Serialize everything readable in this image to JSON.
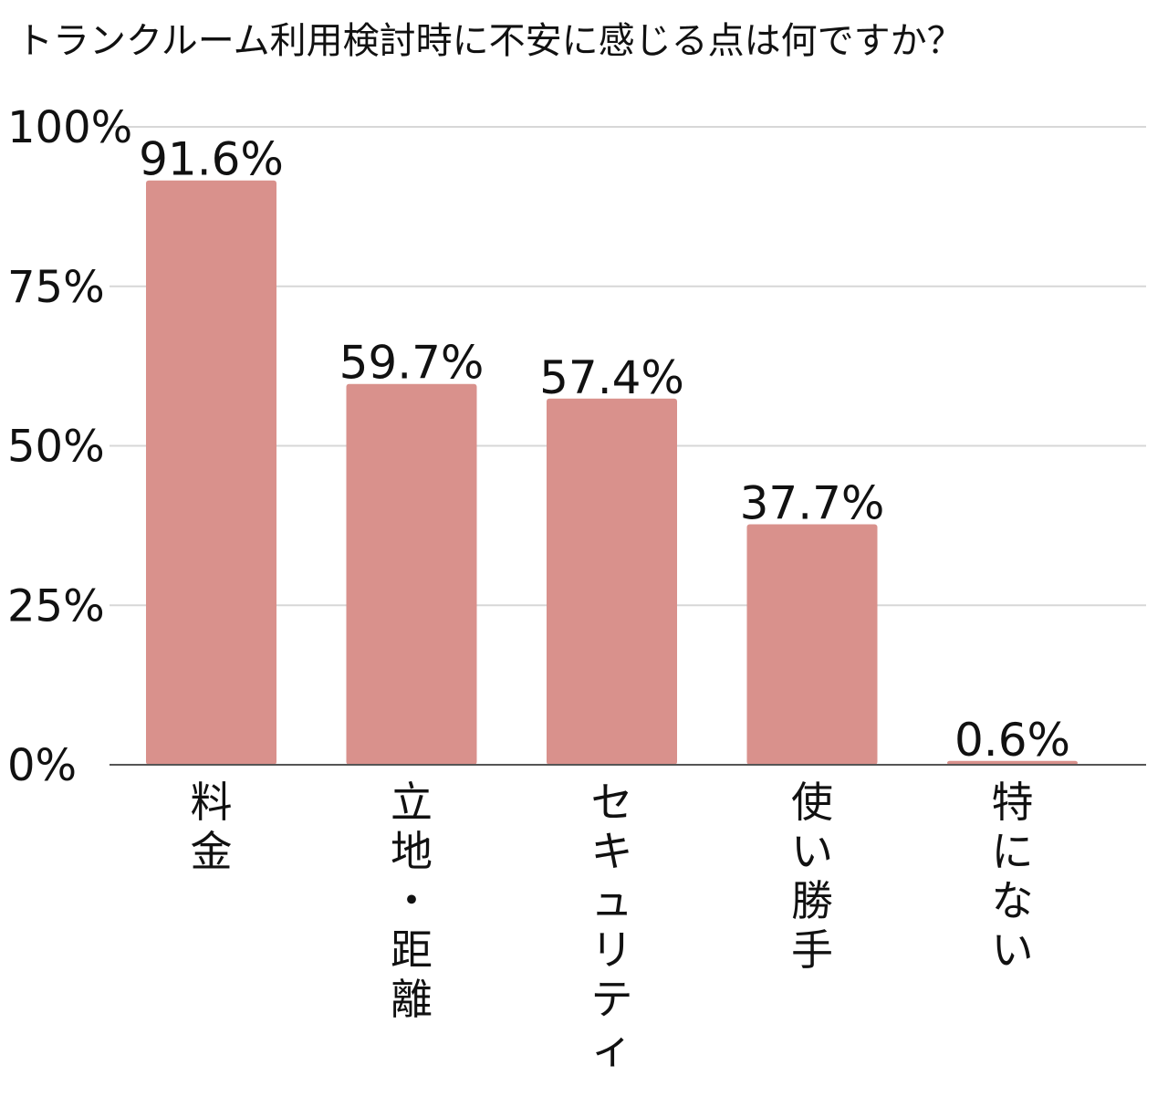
{
  "chart_data": {
    "type": "bar",
    "title": "トランクルーム利用検討時に不安に感じる点は何ですか？",
    "categories": [
      "料金",
      "立地・距離",
      "セキュリティ",
      "使い勝手",
      "特にない"
    ],
    "values": [
      91.6,
      59.7,
      57.4,
      37.7,
      0.6
    ],
    "data_labels": [
      "91.6%",
      "59.7%",
      "57.4%",
      "37.7%",
      "0.6%"
    ],
    "ylim": [
      0,
      100
    ],
    "yticks": [
      0,
      25,
      50,
      75,
      100
    ],
    "ytick_labels": [
      "0%",
      "25%",
      "50%",
      "75%",
      "100%"
    ],
    "xlabel": "",
    "ylabel": "",
    "grid": true,
    "bar_color": "#d9918c",
    "legend": "none"
  }
}
